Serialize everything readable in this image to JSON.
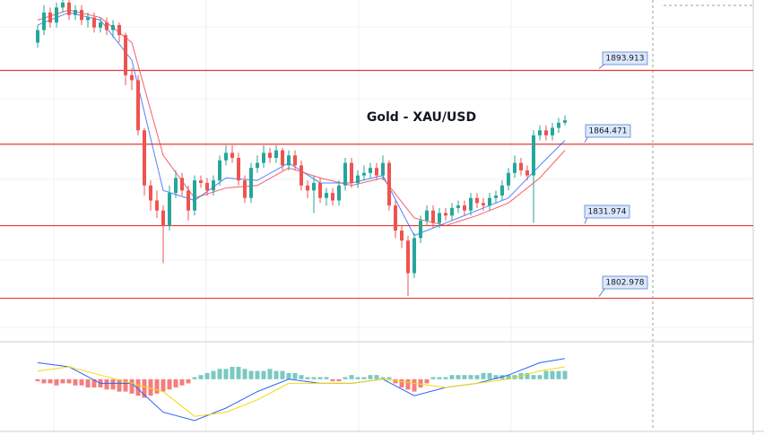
{
  "chart_data": {
    "type": "candlestick",
    "title": "Gold - XAU/USD",
    "ylim": [
      1786,
      1922
    ],
    "up_color": "#26a69a",
    "down_color": "#ef5350",
    "level_color": "#e53935",
    "levels": [
      1893.913,
      1864.471,
      1831.974,
      1802.978
    ],
    "open": [
      1905,
      1910,
      1917,
      1913,
      1919,
      1921,
      1916,
      1918,
      1914,
      1915,
      1911,
      1913,
      1910,
      1912,
      1908,
      1892,
      1890,
      1870,
      1848,
      1842,
      1838,
      1832,
      1845,
      1851,
      1846,
      1838,
      1850,
      1849,
      1846,
      1850,
      1858,
      1861,
      1859,
      1850,
      1843,
      1855,
      1857,
      1861,
      1859,
      1862,
      1856,
      1860,
      1856,
      1848,
      1846,
      1849,
      1843,
      1845,
      1842,
      1848,
      1857,
      1849,
      1852,
      1853,
      1855,
      1852,
      1857,
      1840,
      1830,
      1826,
      1813,
      1827,
      1834,
      1838,
      1833,
      1837,
      1836,
      1839,
      1840,
      1838,
      1843,
      1841,
      1840,
      1843,
      1844,
      1848,
      1853,
      1857,
      1854,
      1852,
      1868,
      1870,
      1868,
      1871,
      1873
    ],
    "high": [
      1912,
      1920,
      1919,
      1921,
      1923,
      1922,
      1920,
      1920,
      1917,
      1917,
      1915,
      1915,
      1914,
      1913,
      1909,
      1895,
      1892,
      1871,
      1850,
      1846,
      1840,
      1848,
      1854,
      1853,
      1848,
      1852,
      1852,
      1851,
      1852,
      1860,
      1864,
      1864,
      1861,
      1852,
      1857,
      1860,
      1864,
      1863,
      1864,
      1863,
      1862,
      1862,
      1858,
      1850,
      1852,
      1851,
      1847,
      1847,
      1850,
      1859,
      1859,
      1854,
      1856,
      1857,
      1857,
      1860,
      1858,
      1842,
      1832,
      1828,
      1829,
      1836,
      1840,
      1840,
      1839,
      1839,
      1841,
      1842,
      1842,
      1845,
      1845,
      1843,
      1845,
      1846,
      1850,
      1855,
      1860,
      1859,
      1856,
      1870,
      1872,
      1872,
      1873,
      1875,
      1876
    ],
    "low": [
      1903,
      1908,
      1911,
      1911,
      1917,
      1914,
      1914,
      1912,
      1911,
      1909,
      1909,
      1908,
      1907,
      1905,
      1888,
      1886,
      1868,
      1844,
      1838,
      1835,
      1817,
      1830,
      1843,
      1844,
      1834,
      1836,
      1847,
      1844,
      1844,
      1848,
      1856,
      1857,
      1848,
      1841,
      1841,
      1853,
      1855,
      1857,
      1857,
      1854,
      1854,
      1854,
      1846,
      1843,
      1837,
      1841,
      1840,
      1840,
      1840,
      1846,
      1847,
      1847,
      1850,
      1851,
      1850,
      1850,
      1838,
      1827,
      1823,
      1804,
      1811,
      1825,
      1832,
      1831,
      1831,
      1834,
      1834,
      1837,
      1836,
      1836,
      1839,
      1838,
      1838,
      1841,
      1842,
      1846,
      1851,
      1852,
      1850,
      1833,
      1866,
      1866,
      1866,
      1869,
      1872
    ],
    "close": [
      1910,
      1917,
      1913,
      1919,
      1921,
      1916,
      1918,
      1914,
      1915,
      1911,
      1913,
      1910,
      1912,
      1908,
      1892,
      1890,
      1870,
      1848,
      1842,
      1838,
      1832,
      1845,
      1851,
      1846,
      1838,
      1850,
      1849,
      1846,
      1850,
      1858,
      1861,
      1859,
      1850,
      1843,
      1855,
      1857,
      1861,
      1859,
      1862,
      1856,
      1860,
      1856,
      1848,
      1846,
      1849,
      1843,
      1845,
      1842,
      1848,
      1857,
      1849,
      1852,
      1853,
      1855,
      1852,
      1857,
      1840,
      1830,
      1826,
      1813,
      1827,
      1834,
      1838,
      1833,
      1837,
      1836,
      1839,
      1840,
      1838,
      1843,
      1841,
      1840,
      1843,
      1844,
      1848,
      1853,
      1857,
      1854,
      1852,
      1868,
      1870,
      1868,
      1871,
      1873,
      1874
    ],
    "ma": [
      {
        "color": "#2962ff",
        "x": [
          0,
          5,
          10,
          15,
          20,
          25,
          30,
          35,
          40,
          45,
          50,
          55,
          60,
          65,
          70,
          75,
          80,
          84
        ],
        "values": [
          1912,
          1917,
          1914,
          1898,
          1846,
          1842,
          1851,
          1850,
          1857,
          1849,
          1849,
          1852,
          1828,
          1833,
          1838,
          1843,
          1856,
          1866
        ]
      },
      {
        "color": "#f23645",
        "x": [
          0,
          5,
          10,
          15,
          20,
          25,
          30,
          35,
          40,
          45,
          50,
          55,
          60,
          65,
          70,
          75,
          80,
          84
        ],
        "values": [
          1914,
          1918,
          1915,
          1905,
          1860,
          1843,
          1847,
          1848,
          1855,
          1851,
          1848,
          1851,
          1835,
          1832,
          1836,
          1841,
          1851,
          1862
        ]
      }
    ],
    "macd": {
      "ylim": [
        -12,
        8
      ],
      "histogram": [
        -0.5,
        -1,
        -1,
        -1.5,
        -1,
        -1,
        -1.5,
        -1.5,
        -2,
        -2,
        -2,
        -2.5,
        -2.5,
        -3,
        -3,
        -3.5,
        -4,
        -4.5,
        -4,
        -3.5,
        -3,
        -2.5,
        -2,
        -1.5,
        -1,
        0.5,
        1,
        1.5,
        2,
        2.5,
        2.5,
        3,
        3,
        2.5,
        2,
        2,
        2,
        2.5,
        2,
        2,
        1.5,
        1.5,
        1,
        0.5,
        0.5,
        0.5,
        0.5,
        -0.5,
        -0.5,
        0.5,
        1,
        0.5,
        0.5,
        1,
        1,
        0.5,
        0.5,
        -1,
        -2,
        -2.5,
        -3,
        -2,
        -1,
        0.5,
        0.5,
        0.5,
        1,
        1,
        1,
        1,
        1,
        1.5,
        1.5,
        1,
        1,
        1,
        1,
        1.5,
        1.5,
        1,
        1,
        2,
        2,
        2,
        2
      ],
      "x": [
        0,
        5,
        10,
        15,
        20,
        25,
        30,
        35,
        40,
        45,
        50,
        55,
        60,
        65,
        70,
        75,
        80,
        84
      ],
      "series": [
        {
          "color": "#2962ff",
          "values": [
            4,
            3,
            -1,
            -1,
            -8,
            -10,
            -7,
            -3,
            0,
            -1,
            -1,
            0,
            -4,
            -2,
            -1,
            1,
            4,
            5
          ]
        },
        {
          "color": "#f5d90a",
          "values": [
            2,
            3,
            1,
            -1,
            -3,
            -9,
            -8,
            -5,
            -1,
            -1,
            -1,
            0,
            -1,
            -2,
            -1,
            0,
            2,
            3
          ]
        }
      ]
    }
  }
}
